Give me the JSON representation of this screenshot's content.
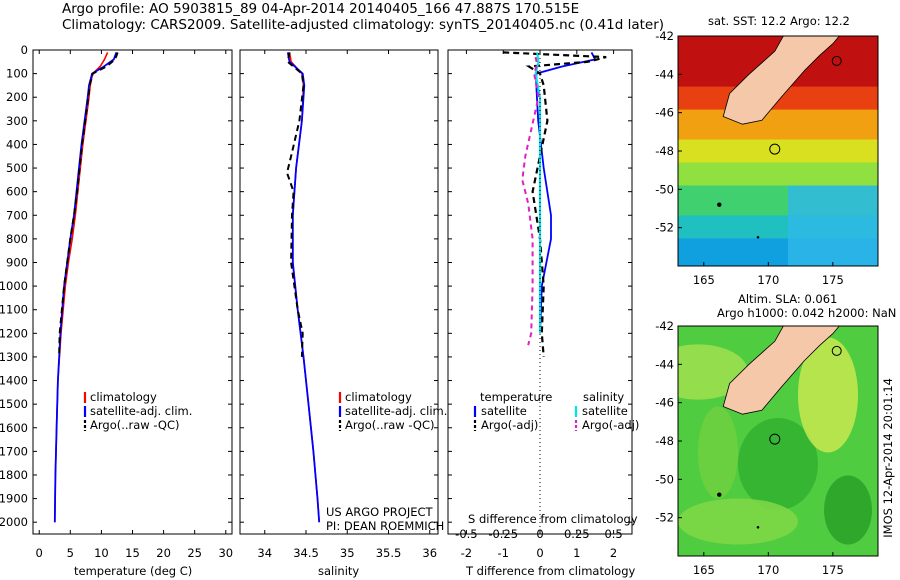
{
  "header": {
    "line1": "Argo profile: AO 5903815_89 04-Apr-2014 20140405_166 47.887S 170.515E",
    "line2": "Climatology: CARS2009. Satellite-adjusted climatology: synTS_20140405.nc (0.41d later)"
  },
  "colors": {
    "climatology": "#ff0000",
    "satellite": "#0000ff",
    "argo": "#000000",
    "salinity_satellite": "#00e5e5",
    "salinity_argo": "#e020c0"
  },
  "depth_axis": {
    "ylim": [
      0,
      2050
    ],
    "ticks": [
      "0",
      "100",
      "200",
      "300",
      "400",
      "500",
      "600",
      "700",
      "800",
      "900",
      "1000",
      "1100",
      "1200",
      "1300",
      "1400",
      "1500",
      "1600",
      "1700",
      "1800",
      "1900",
      "2000"
    ]
  },
  "chart_data": [
    {
      "type": "line",
      "name": "temperature",
      "xlabel": "temperature (deg C)",
      "xlim": [
        -1,
        31
      ],
      "xticks": [
        "0",
        "5",
        "10",
        "15",
        "20",
        "25",
        "30"
      ],
      "xtick_values": [
        0,
        5,
        10,
        15,
        20,
        25,
        30
      ],
      "legend": [
        "climatology",
        "satellite-adj. clim.",
        "Argo(..raw -QC)"
      ],
      "series": [
        {
          "name": "climatology",
          "depth": [
            10,
            40,
            70,
            100,
            150,
            200,
            300,
            400,
            500,
            600,
            700,
            800,
            900,
            1000,
            1200,
            1400,
            1600,
            1800,
            2000
          ],
          "values": [
            11.0,
            10.5,
            9.8,
            8.6,
            8.2,
            8.0,
            7.5,
            7.0,
            6.6,
            6.2,
            5.8,
            5.3,
            4.7,
            4.2,
            3.5,
            3.0,
            2.8,
            2.6,
            2.5
          ]
        },
        {
          "name": "satellite",
          "depth": [
            10,
            40,
            70,
            100,
            150,
            200,
            300,
            400,
            500,
            600,
            700,
            800,
            900,
            1000,
            1200,
            1400,
            1600,
            1800,
            2000
          ],
          "values": [
            12.4,
            12.0,
            10.4,
            8.5,
            8.0,
            7.8,
            7.3,
            6.8,
            6.4,
            6.0,
            5.6,
            5.0,
            4.5,
            4.0,
            3.4,
            3.0,
            2.8,
            2.6,
            2.5
          ]
        },
        {
          "name": "argo",
          "depth": [
            10,
            40,
            70,
            100,
            150,
            200,
            300,
            400,
            500,
            600,
            700,
            800,
            900,
            1000,
            1200,
            1300
          ],
          "values": [
            12.6,
            12.2,
            10.8,
            8.6,
            8.1,
            7.9,
            7.4,
            6.9,
            6.5,
            6.1,
            5.6,
            5.0,
            4.5,
            4.0,
            3.3,
            3.2
          ]
        }
      ]
    },
    {
      "type": "line",
      "name": "salinity",
      "xlabel": "salinity",
      "xlim": [
        33.7,
        36.1
      ],
      "xticks": [
        "34",
        "34.5",
        "35",
        "35.5",
        "36"
      ],
      "xtick_values": [
        34,
        34.5,
        35,
        35.5,
        36
      ],
      "legend": [
        "climatology",
        "satellite-adj. clim.",
        "Argo(..raw -QC)"
      ],
      "credit": [
        "US ARGO PROJECT",
        "PI: DEAN ROEMMICH"
      ],
      "series": [
        {
          "name": "climatology",
          "depth": [
            10,
            50,
            100,
            150,
            300,
            500,
            700,
            900,
            1100,
            1300,
            1500,
            1700,
            1900,
            2000
          ],
          "values": [
            34.3,
            34.32,
            34.45,
            34.47,
            34.45,
            34.38,
            34.34,
            34.34,
            34.4,
            34.47,
            34.53,
            34.59,
            34.64,
            34.66
          ]
        },
        {
          "name": "satellite",
          "depth": [
            10,
            50,
            100,
            150,
            300,
            500,
            700,
            900,
            1100,
            1300,
            1500,
            1700,
            1900,
            2000
          ],
          "values": [
            34.28,
            34.3,
            34.46,
            34.48,
            34.45,
            34.38,
            34.34,
            34.34,
            34.4,
            34.47,
            34.53,
            34.59,
            34.64,
            34.66
          ]
        },
        {
          "name": "argo",
          "depth": [
            10,
            50,
            100,
            150,
            300,
            450,
            520,
            600,
            700,
            900,
            1100,
            1200,
            1300
          ],
          "values": [
            34.3,
            34.28,
            34.45,
            34.47,
            34.42,
            34.32,
            34.27,
            34.35,
            34.33,
            34.32,
            34.4,
            34.46,
            34.45
          ]
        }
      ]
    },
    {
      "type": "line",
      "name": "difference",
      "xlabel": "T difference from climatology",
      "xlim": [
        -2.5,
        2.5
      ],
      "xticks": [
        "-2",
        "-1",
        "0",
        "1",
        "2"
      ],
      "xtick_values": [
        -2,
        -1,
        0,
        1,
        2
      ],
      "top_xlabel": "S difference from climatology",
      "top_xticks": [
        "-0.5",
        "-0.25",
        "0",
        "0.25",
        "0.5"
      ],
      "top_xtick_values": [
        -0.5,
        -0.25,
        0,
        0.25,
        0.5
      ],
      "legend_titles": [
        "temperature",
        "salinity"
      ],
      "legend": [
        "satellite",
        "Argo(-adj)",
        "satellite",
        "Argo(-adj)"
      ],
      "series": [
        {
          "name": "T satellite",
          "depth": [
            10,
            40,
            70,
            100,
            150,
            300,
            500,
            700,
            800,
            1000,
            1200
          ],
          "values": [
            1.4,
            1.5,
            0.6,
            -0.1,
            -0.1,
            -0.05,
            0.1,
            0.3,
            0.3,
            0.05,
            0.0
          ]
        },
        {
          "name": "T argo",
          "depth": [
            10,
            30,
            50,
            70,
            100,
            150,
            300,
            450,
            600,
            800,
            1000,
            1200,
            1300
          ],
          "values": [
            -1.0,
            1.8,
            1.3,
            -0.3,
            0.0,
            0.1,
            0.2,
            0.0,
            -0.2,
            0.0,
            0.1,
            0.05,
            0.1
          ]
        },
        {
          "name": "S satellite",
          "depth": [
            10,
            50,
            100,
            200,
            400,
            600,
            800,
            1000,
            1200
          ],
          "values": [
            -0.02,
            -0.01,
            -0.03,
            0.0,
            0.0,
            0.0,
            0.0,
            0.0,
            0.0
          ]
        },
        {
          "name": "S argo",
          "depth": [
            30,
            60,
            100,
            200,
            450,
            550,
            650,
            800,
            1000,
            1200,
            1250
          ],
          "values": [
            -0.03,
            -0.02,
            -0.04,
            -0.01,
            -0.1,
            -0.12,
            -0.08,
            -0.05,
            -0.05,
            -0.06,
            -0.08
          ]
        }
      ]
    },
    {
      "type": "heatmap",
      "name": "sst_map",
      "title": "sat. SST: 12.2  Argo: 12.2",
      "xticks": [
        "165",
        "170",
        "175"
      ],
      "yticks": [
        "-42",
        "-44",
        "-46",
        "-48",
        "-50",
        "-52"
      ],
      "xlim": [
        163,
        178.5
      ],
      "ylim": [
        -54,
        -42
      ]
    },
    {
      "type": "heatmap",
      "name": "sla_map",
      "title_line1": "Altim. SLA: 0.061",
      "title_line2": "Argo h1000: 0.042  h2000: NaN",
      "xticks": [
        "165",
        "170",
        "175"
      ],
      "yticks": [
        "-42",
        "-44",
        "-46",
        "-48",
        "-50",
        "-52"
      ],
      "xlim": [
        163,
        178.5
      ],
      "ylim": [
        -54,
        -42
      ]
    }
  ],
  "footer_stamp": "IMOS 12-Apr-2014 20:01:14"
}
